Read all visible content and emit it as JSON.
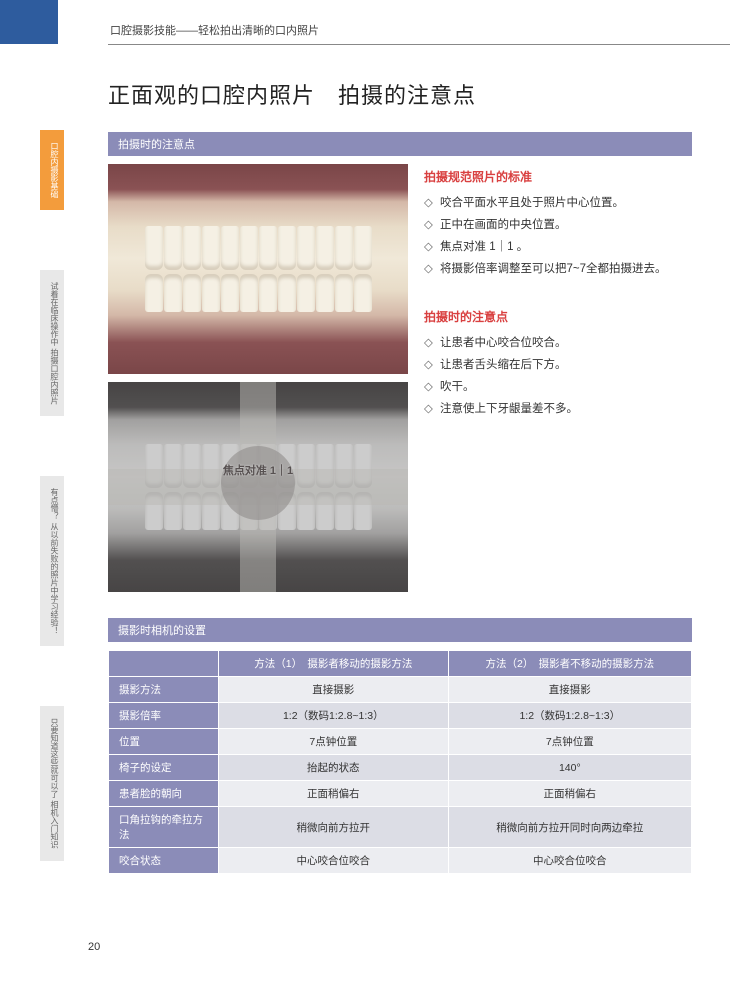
{
  "header": {
    "breadcrumb": "口腔摄影技能——轻松拍出清晰的口内照片"
  },
  "sideTabs": [
    {
      "label": "口腔内摄影基础",
      "active": true
    },
    {
      "label": "试着在临床操作中\n拍摄口腔内照片",
      "active": false
    },
    {
      "label": "有点懵？\n从以前失败的照片中学习经验！",
      "active": false
    },
    {
      "label": "只要知道这些就可以了\n相机入门知识",
      "active": false
    }
  ],
  "title": "正面观的口腔内照片　拍摄的注意点",
  "section1": {
    "bar": "拍摄时的注意点",
    "focusLabel": "焦点对准 1｜1",
    "standards": {
      "heading": "拍摄规范照片的标准",
      "items": [
        "咬合平面水平且处于照片中心位置。",
        "正中在画面的中央位置。",
        "焦点对准 1｜1 。",
        "将摄影倍率调整至可以把7~7全都拍摄进去。"
      ]
    },
    "cautions": {
      "heading": "拍摄时的注意点",
      "items": [
        "让患者中心咬合位咬合。",
        "让患者舌头缩在后下方。",
        "吹干。",
        "注意使上下牙龈量差不多。"
      ]
    }
  },
  "section2": {
    "bar": "摄影时相机的设置",
    "headers": [
      "",
      "方法（1）　摄影者移动的摄影方法",
      "方法（2）　摄影者不移动的摄影方法"
    ],
    "rows": [
      {
        "label": "摄影方法",
        "c1": "直接摄影",
        "c2": "直接摄影"
      },
      {
        "label": "摄影倍率",
        "c1": "1:2（数码1:2.8~1:3）",
        "c2": "1:2（数码1:2.8~1:3）"
      },
      {
        "label": "位置",
        "c1": "7点钟位置",
        "c2": "7点钟位置"
      },
      {
        "label": "椅子的设定",
        "c1": "抬起的状态",
        "c2": "140°"
      },
      {
        "label": "患者脸的朝向",
        "c1": "正面稍偏右",
        "c2": "正面稍偏右"
      },
      {
        "label": "口角拉钩的牵拉方法",
        "c1": "稍微向前方拉开",
        "c2": "稍微向前方拉开同时向两边牵拉"
      },
      {
        "label": "咬合状态",
        "c1": "中心咬合位咬合",
        "c2": "中心咬合位咬合"
      }
    ]
  },
  "pageNumber": "20"
}
